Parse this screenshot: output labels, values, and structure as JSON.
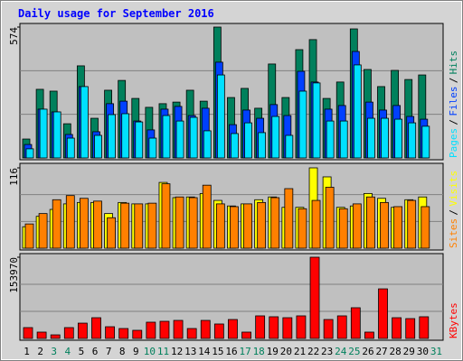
{
  "title": "Daily usage for September 2016",
  "chart_data": [
    {
      "type": "bar",
      "ylim": [
        0,
        574
      ],
      "yticks": [
        574
      ],
      "separator": "/",
      "series": [
        {
          "name": "Hits",
          "color": "#00805c",
          "values": [
            83,
            301,
            293,
            150,
            404,
            174,
            297,
            340,
            261,
            222,
            238,
            245,
            297,
            249,
            574,
            265,
            305,
            218,
            412,
            265,
            475,
            519,
            261,
            333,
            566,
            388,
            313,
            384,
            344,
            364,
            null
          ]
        },
        {
          "name": "Files",
          "color": "#0040ff",
          "values": [
            59,
            214,
            202,
            103,
            313,
            115,
            238,
            249,
            162,
            123,
            214,
            226,
            186,
            218,
            420,
            146,
            210,
            174,
            234,
            186,
            380,
            333,
            214,
            230,
            467,
            245,
            210,
            230,
            182,
            170,
            null
          ]
        },
        {
          "name": "Pages",
          "color": "#00e0ff",
          "values": [
            40,
            214,
            202,
            87,
            313,
            99,
            190,
            194,
            158,
            87,
            186,
            162,
            178,
            119,
            364,
            107,
            154,
            111,
            182,
            99,
            293,
            329,
            162,
            162,
            408,
            174,
            174,
            170,
            154,
            139,
            null
          ]
        }
      ]
    },
    {
      "type": "bar",
      "ylim": [
        0,
        116
      ],
      "yticks": [
        116
      ],
      "separator": "/",
      "series": [
        {
          "name": "Visits",
          "color": "#ffff00",
          "values": [
            31,
            46,
            56,
            64,
            66,
            66,
            50,
            66,
            64,
            64,
            95,
            73,
            74,
            79,
            69,
            61,
            64,
            70,
            74,
            59,
            59,
            116,
            103,
            59,
            61,
            79,
            72,
            59,
            70,
            74,
            null
          ]
        },
        {
          "name": "Sites",
          "color": "#ff8000",
          "values": [
            35,
            50,
            70,
            76,
            72,
            68,
            44,
            65,
            64,
            65,
            93,
            74,
            73,
            91,
            64,
            60,
            64,
            66,
            73,
            86,
            57,
            69,
            88,
            57,
            64,
            74,
            66,
            60,
            69,
            60,
            null
          ]
        }
      ]
    },
    {
      "type": "bar",
      "ylim": [
        0,
        153970
      ],
      "yticks": [
        153970
      ],
      "series": [
        {
          "name": "KBytes",
          "color": "#ff0000",
          "values": [
            20528,
            12000,
            6800,
            20528,
            29000,
            39300,
            22200,
            18800,
            15400,
            30800,
            32500,
            34200,
            18800,
            34200,
            27400,
            35900,
            12000,
            42800,
            41100,
            39300,
            42800,
            153970,
            35900,
            42800,
            58200,
            12000,
            94000,
            39300,
            37600,
            41100,
            null
          ]
        }
      ],
      "categories": [
        "1",
        "2",
        "3",
        "4",
        "5",
        "6",
        "7",
        "8",
        "9",
        "10",
        "11",
        "12",
        "13",
        "14",
        "15",
        "16",
        "17",
        "18",
        "19",
        "20",
        "21",
        "22",
        "23",
        "24",
        "25",
        "26",
        "27",
        "28",
        "29",
        "30",
        "31"
      ],
      "category_colors": [
        "#000000",
        "#000000",
        "#00805c",
        "#00805c",
        "#000000",
        "#000000",
        "#000000",
        "#000000",
        "#000000",
        "#00805c",
        "#00805c",
        "#000000",
        "#000000",
        "#000000",
        "#000000",
        "#000000",
        "#00805c",
        "#00805c",
        "#000000",
        "#000000",
        "#000000",
        "#000000",
        "#000000",
        "#00805c",
        "#00805c",
        "#000000",
        "#000000",
        "#000000",
        "#000000",
        "#000000",
        "#00805c"
      ]
    }
  ]
}
